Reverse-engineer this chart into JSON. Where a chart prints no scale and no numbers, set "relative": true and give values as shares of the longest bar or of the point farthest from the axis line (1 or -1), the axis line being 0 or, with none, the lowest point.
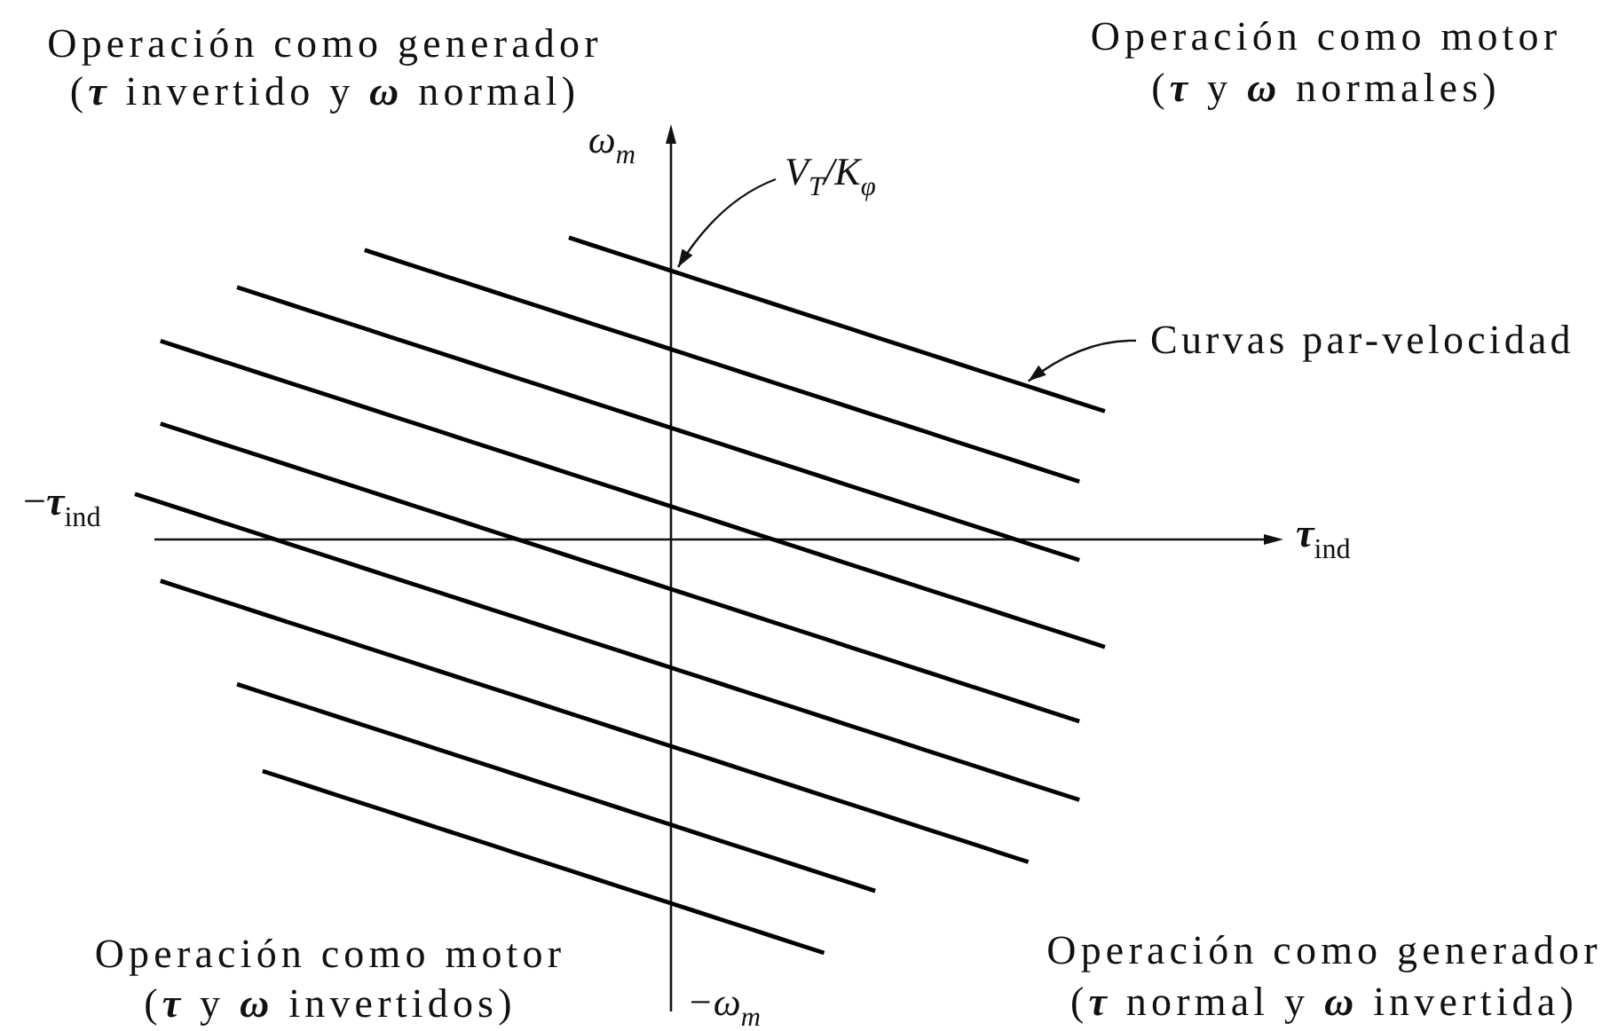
{
  "chart_data": {
    "type": "line",
    "relative": true,
    "xlabel": "τ$_{ind}$",
    "ylabel": "ω$_{m}$",
    "categories": [
      null,
      null,
      null,
      null,
      null,
      null,
      null,
      null,
      null,
      null,
      null,
      null,
      null,
      null,
      null,
      null,
      null,
      null,
      null,
      null,
      null,
      null,
      null,
      null,
      null,
      null,
      null,
      null,
      null,
      null,
      null,
      null,
      null,
      null,
      null,
      null,
      null,
      null,
      null
    ],
    "series": [
      {
        "color": "#000000",
        "values": [
          null,
          null,
          null,
          null,
          null,
          null,
          null,
          null,
          null,
          null,
          null,
          null,
          null,
          null,
          null,
          null,
          null,
          0.73,
          0.71,
          0.69,
          0.67,
          0.65,
          0.63,
          0.61,
          0.59,
          0.57,
          0.55,
          0.53,
          0.51,
          0.49,
          0.47,
          0.45,
          0.43,
          0.41,
          0.39,
          0.37,
          0.35,
          0.33,
          0.31
        ]
      },
      {
        "color": "#000000",
        "values": [
          null,
          null,
          null,
          null,
          null,
          null,
          null,
          null,
          null,
          0.7,
          0.68,
          0.66,
          0.64,
          0.62,
          0.6,
          0.58,
          0.56,
          0.54,
          0.52,
          0.5,
          0.48,
          0.46,
          0.44,
          0.42,
          0.4,
          0.38,
          0.36,
          0.34,
          0.32,
          0.3,
          0.28,
          0.26,
          0.24,
          0.22,
          0.2,
          0.18,
          0.16,
          0.14,
          null
        ]
      },
      {
        "color": "#000000",
        "values": [
          null,
          null,
          null,
          null,
          0.61,
          0.59,
          0.57,
          0.55,
          0.53,
          0.51,
          0.49,
          0.47,
          0.45,
          0.43,
          0.41,
          0.39,
          0.37,
          0.35,
          0.33,
          0.31,
          0.29,
          0.27,
          0.25,
          0.23,
          0.21,
          0.19,
          0.17,
          0.15,
          0.13,
          0.11,
          0.09,
          0.07,
          0.05,
          0.03,
          0.01,
          -0.01,
          -0.03,
          -0.05,
          null
        ]
      },
      {
        "color": "#000000",
        "values": [
          null,
          0.48,
          0.46,
          0.44,
          0.42,
          0.4,
          0.38,
          0.36,
          0.34,
          0.32,
          0.3,
          0.28,
          0.26,
          0.24,
          0.22,
          0.2,
          0.18,
          0.16,
          0.14,
          0.12,
          0.1,
          0.08,
          0.06,
          0.04,
          0.02,
          0,
          -0.02,
          -0.04,
          -0.06,
          -0.08,
          -0.1,
          -0.12,
          -0.14,
          -0.16,
          -0.18,
          -0.2,
          -0.22,
          -0.24,
          -0.26
        ]
      },
      {
        "color": "#000000",
        "values": [
          null,
          0.28,
          0.26,
          0.24,
          0.22,
          0.2,
          0.18,
          0.16,
          0.14,
          0.12,
          0.1,
          0.08,
          0.06,
          0.04,
          0.02,
          0,
          -0.02,
          -0.04,
          -0.06,
          -0.08,
          -0.1,
          -0.12,
          -0.14,
          -0.16,
          -0.18,
          -0.2,
          -0.22,
          -0.24,
          -0.26,
          -0.28,
          -0.3,
          -0.32,
          -0.34,
          -0.36,
          -0.38,
          -0.4,
          -0.42,
          -0.44,
          null
        ]
      },
      {
        "color": "#000000",
        "values": [
          0.11,
          0.09,
          0.07,
          0.05,
          0.03,
          0.01,
          -0.01,
          -0.03,
          -0.05,
          -0.07,
          -0.09,
          -0.11,
          -0.13,
          -0.15,
          -0.17,
          -0.19,
          -0.21,
          -0.23,
          -0.25,
          -0.27,
          -0.29,
          -0.31,
          -0.33,
          -0.35,
          -0.37,
          -0.39,
          -0.41,
          -0.43,
          -0.45,
          -0.47,
          -0.49,
          -0.51,
          -0.53,
          -0.55,
          -0.57,
          -0.59,
          -0.61,
          -0.63,
          null
        ]
      },
      {
        "color": "#000000",
        "values": [
          null,
          -0.1,
          -0.12,
          -0.14,
          -0.16,
          -0.18,
          -0.2,
          -0.22,
          -0.24,
          -0.26,
          -0.28,
          -0.3,
          -0.32,
          -0.34,
          -0.36,
          -0.38,
          -0.4,
          -0.42,
          -0.44,
          -0.46,
          -0.48,
          -0.5,
          -0.52,
          -0.54,
          -0.56,
          -0.58,
          -0.6,
          -0.62,
          -0.64,
          -0.66,
          -0.68,
          -0.7,
          -0.72,
          -0.74,
          -0.76,
          -0.78,
          null,
          null,
          null
        ]
      },
      {
        "color": "#000000",
        "values": [
          null,
          null,
          null,
          null,
          -0.35,
          -0.37,
          -0.39,
          -0.41,
          -0.43,
          -0.45,
          -0.47,
          -0.49,
          -0.51,
          -0.53,
          -0.55,
          -0.57,
          -0.59,
          -0.61,
          -0.63,
          -0.65,
          -0.67,
          -0.69,
          -0.71,
          -0.73,
          -0.75,
          -0.77,
          -0.79,
          -0.81,
          -0.83,
          -0.85,
          null,
          null,
          null,
          null,
          null,
          null,
          null,
          null,
          null
        ]
      },
      {
        "color": "#000000",
        "values": [
          null,
          null,
          null,
          null,
          null,
          -0.56,
          -0.58,
          -0.6,
          -0.62,
          -0.64,
          -0.66,
          -0.68,
          -0.7,
          -0.72,
          -0.74,
          -0.76,
          -0.78,
          -0.8,
          -0.82,
          -0.84,
          -0.86,
          -0.88,
          -0.9,
          -0.92,
          -0.94,
          -0.96,
          -0.98,
          -1,
          null,
          null,
          null,
          null,
          null,
          null,
          null,
          null,
          null,
          null,
          null
        ]
      }
    ],
    "annotations": [
      "Operación como generador\n(τ invertido y ω normal)",
      "Operación como motor\n(τ y ω normales)",
      "Operación como motor\n(τ y ω invertidos)",
      "Operación como generador\n(τ normal y ω invertida)",
      "−τ$_{ind}$",
      "−ω$_{m}$",
      "V$_{T}$/K$_{φ}$",
      "Curvas par-velocidad"
    ]
  }
}
